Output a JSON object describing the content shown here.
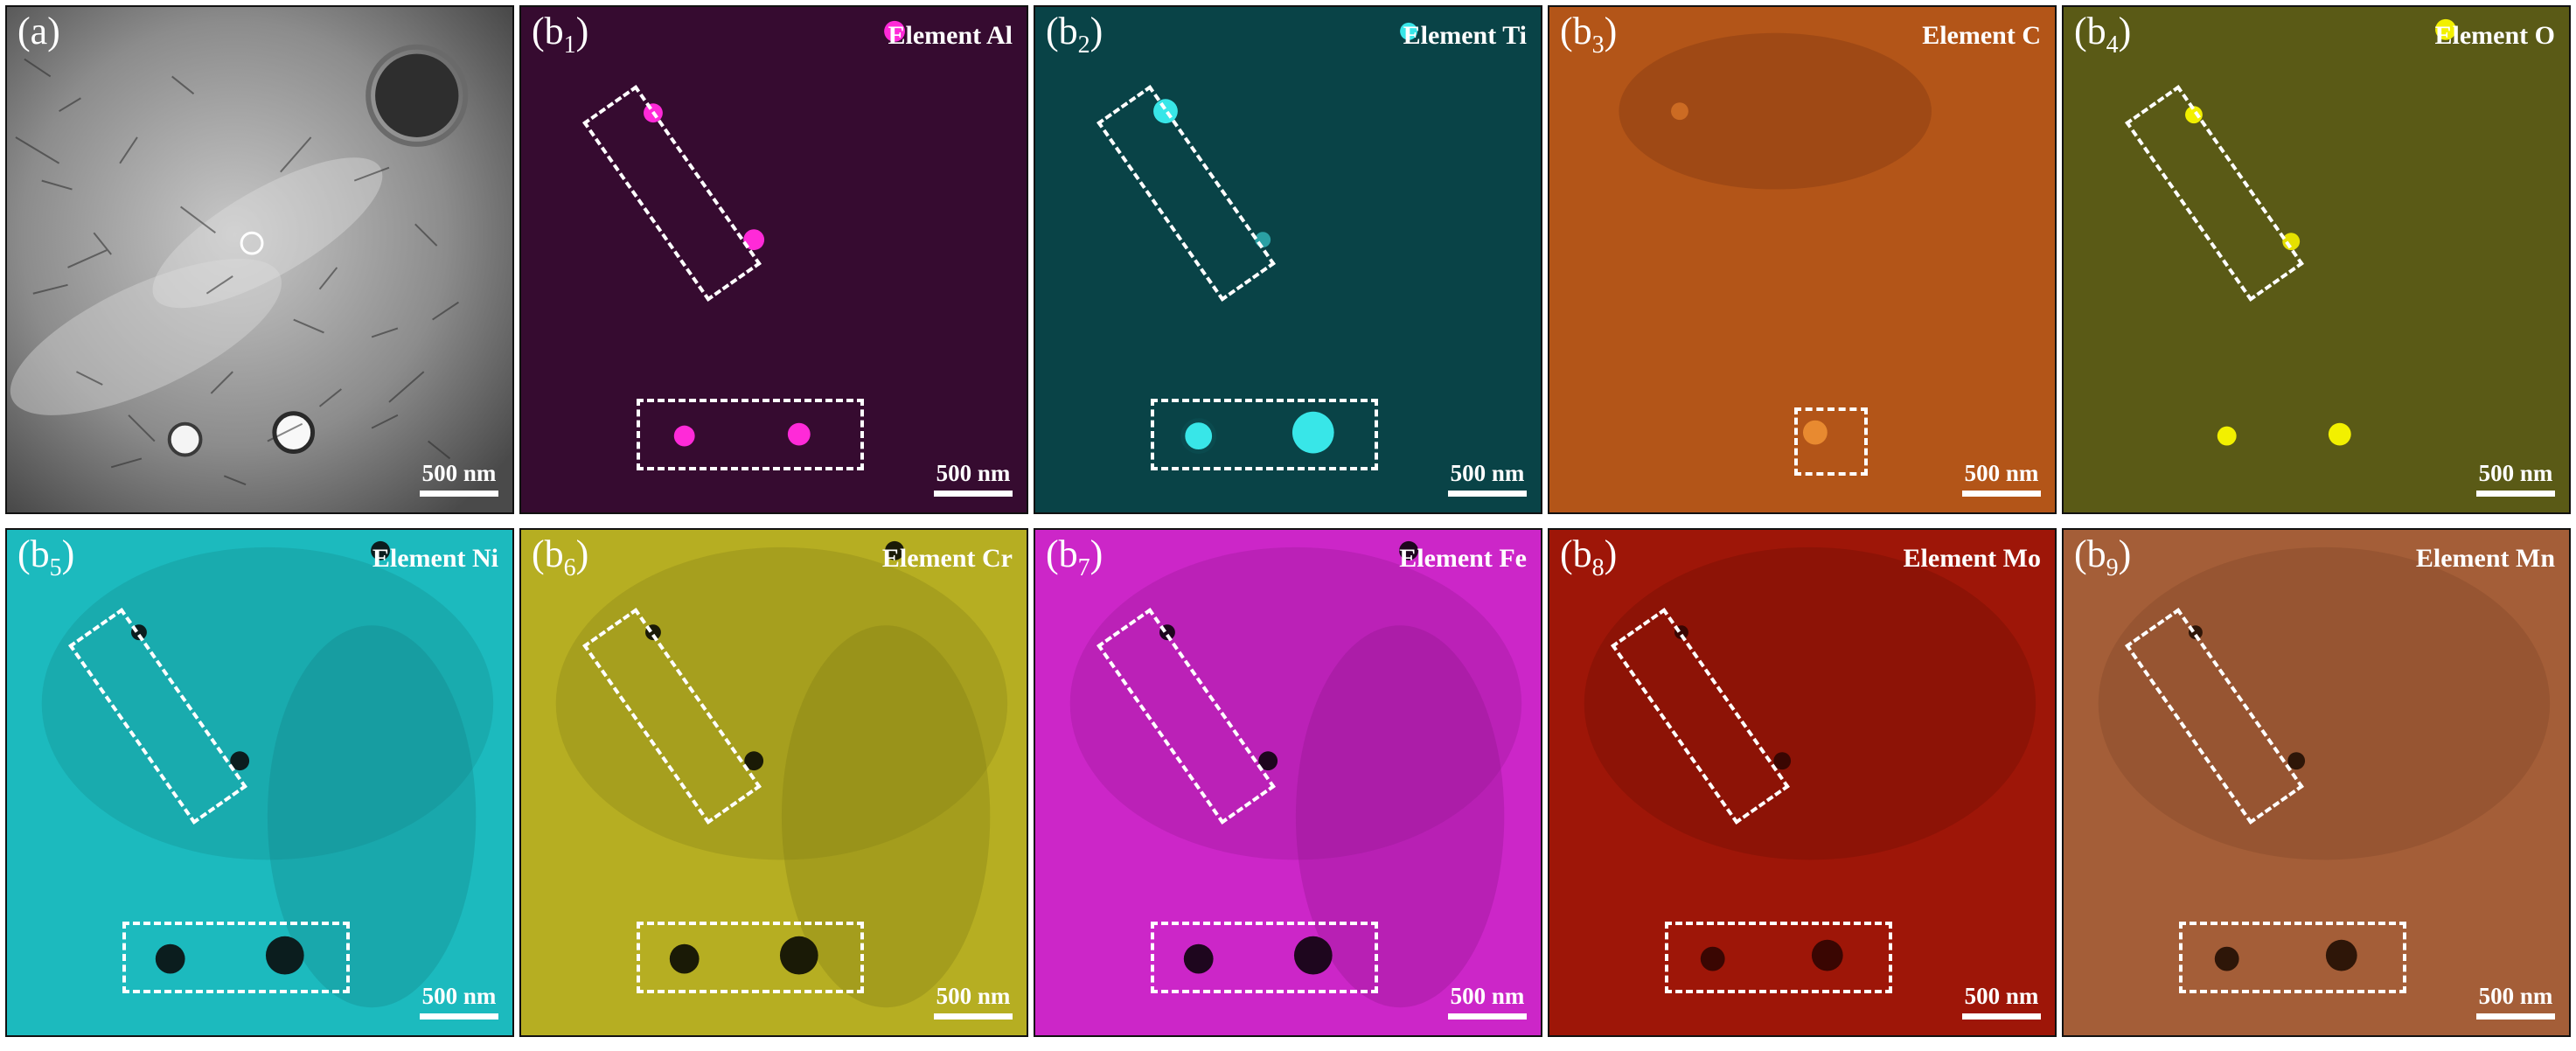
{
  "figure": {
    "panels": [
      {
        "id": "a",
        "label_main": "(a)",
        "label_sub": "",
        "element": "",
        "scalebar": "500 nm",
        "color": "#8a8a8a",
        "type": "tem"
      },
      {
        "id": "b1",
        "label_main": "(b",
        "label_sub": "1",
        "label_close": ")",
        "element": "Element Al",
        "scalebar": "500 nm",
        "color": "#ff2ad8",
        "type": "map",
        "bg": "#24061f",
        "dots": "bright"
      },
      {
        "id": "b2",
        "label_main": "(b",
        "label_sub": "2",
        "label_close": ")",
        "element": "Element Ti",
        "scalebar": "500 nm",
        "color": "#38e6e8",
        "type": "map",
        "bg": "#05363a",
        "dots": "bright"
      },
      {
        "id": "b3",
        "label_main": "(b",
        "label_sub": "3",
        "label_close": ")",
        "element": "Element C",
        "scalebar": "500 nm",
        "color": "#f07a25",
        "type": "map",
        "bg": "#9a4713",
        "dots": "c"
      },
      {
        "id": "b4",
        "label_main": "(b",
        "label_sub": "4",
        "label_close": ")",
        "element": "Element O",
        "scalebar": "500 nm",
        "color": "#f2f000",
        "type": "map",
        "bg": "#4a4a10",
        "dots": "bright"
      },
      {
        "id": "b5",
        "label_main": "(b",
        "label_sub": "5",
        "label_close": ")",
        "element": "Element Ni",
        "scalebar": "500 nm",
        "color": "#21c4c7",
        "type": "map",
        "bg": "#1ab3b7",
        "dots": "dark"
      },
      {
        "id": "b6",
        "label_main": "(b",
        "label_sub": "6",
        "label_close": ")",
        "element": "Element Cr",
        "scalebar": "500 nm",
        "color": "#c9c22a",
        "type": "map",
        "bg": "#b3ab1e",
        "dots": "dark"
      },
      {
        "id": "b7",
        "label_main": "(b",
        "label_sub": "7",
        "label_close": ")",
        "element": "Element Fe",
        "scalebar": "500 nm",
        "color": "#e030d8",
        "type": "map",
        "bg": "#c922c6",
        "dots": "dark"
      },
      {
        "id": "b8",
        "label_main": "(b",
        "label_sub": "8",
        "label_close": ")",
        "element": "Element Mo",
        "scalebar": "500 nm",
        "color": "#b81d10",
        "type": "map",
        "bg": "#9c1608",
        "dots": "dark"
      },
      {
        "id": "b9",
        "label_main": "(b",
        "label_sub": "9",
        "label_close": ")",
        "element": "Element Mn",
        "scalebar": "500 nm",
        "color": "#c77244",
        "type": "map",
        "bg": "#a65e37",
        "dots": "dark"
      }
    ]
  }
}
